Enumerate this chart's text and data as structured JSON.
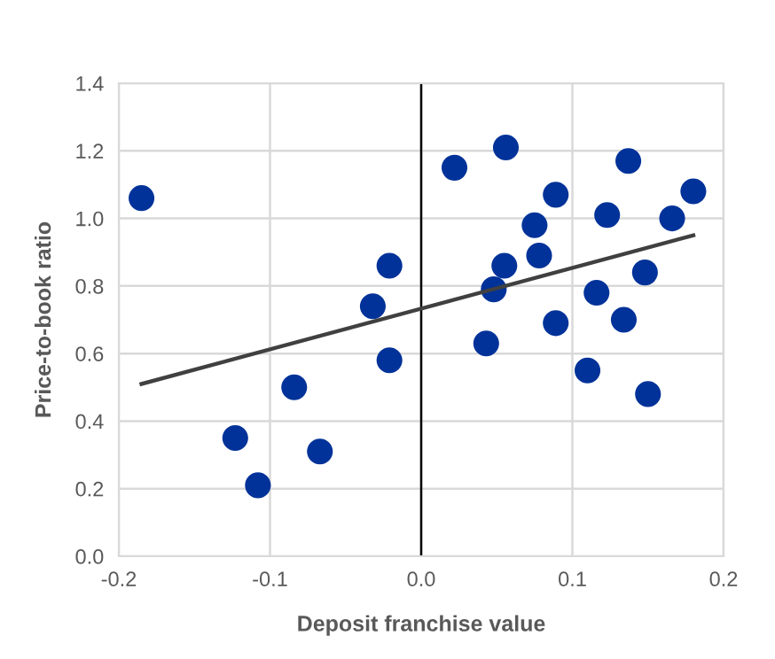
{
  "chart_data": {
    "type": "scatter",
    "xlabel": "Deposit franchise value",
    "ylabel": "Price-to-book ratio",
    "series": [
      {
        "color": "#003299",
        "marker": "circle",
        "x": [
          -0.185,
          -0.123,
          -0.108,
          -0.084,
          -0.067,
          -0.032,
          -0.021,
          -0.021,
          0.022,
          0.043,
          0.048,
          0.055,
          0.056,
          0.075,
          0.078,
          0.089,
          0.089,
          0.11,
          0.116,
          0.123,
          0.137,
          0.134,
          0.148,
          0.15,
          0.166,
          0.18
        ],
        "values": [
          1.06,
          0.35,
          0.21,
          0.5,
          0.31,
          0.74,
          0.86,
          0.58,
          1.15,
          0.63,
          0.79,
          0.86,
          1.21,
          0.98,
          0.89,
          1.07,
          0.69,
          0.55,
          0.78,
          1.01,
          1.17,
          0.7,
          0.84,
          0.48,
          1.0,
          1.08
        ]
      },
      {
        "type": "line",
        "color": "#404040",
        "marker": "none",
        "x": [
          -0.185,
          0.18
        ],
        "values": [
          0.51,
          0.95
        ]
      }
    ],
    "xlim": [
      -0.2,
      0.2
    ],
    "ylim": [
      0,
      1.4
    ],
    "xticks": [
      {
        "value": -0.2,
        "label": "-0.2"
      },
      {
        "value": -0.1,
        "label": "-0.1"
      },
      {
        "value": 0,
        "label": "0.0"
      },
      {
        "value": 0.1,
        "label": "0.1"
      },
      {
        "value": 0.2,
        "label": "0.2"
      }
    ],
    "yticks": [
      {
        "value": 0,
        "label": "0.0"
      },
      {
        "value": 0.2,
        "label": "0.2"
      },
      {
        "value": 0.4,
        "label": "0.4"
      },
      {
        "value": 0.6,
        "label": "0.6"
      },
      {
        "value": 0.8,
        "label": "0.8"
      },
      {
        "value": 1.0,
        "label": "1.0"
      },
      {
        "value": 1.2,
        "label": "1.2"
      },
      {
        "value": 1.4,
        "label": "1.4"
      }
    ],
    "ref_lines": [
      {
        "axis": "x",
        "value": 0,
        "color": "#000000"
      }
    ],
    "grid": true
  }
}
